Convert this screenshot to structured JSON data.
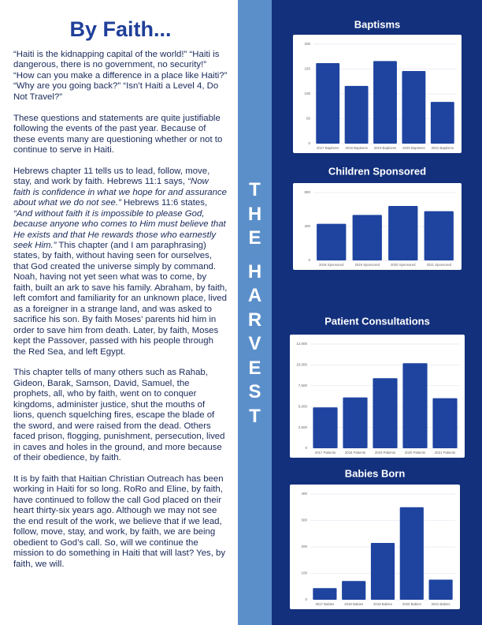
{
  "header": {
    "title": "By Faith..."
  },
  "paragraphs": [
    [
      "“Haiti is the kidnapping capital of the world!” “Haiti is dangerous, there is no government, no security!” “How can you make a difference in a place like Haiti?” “Why are you going back?” “Isn’t Haiti a Level 4, Do Not Travel?”"
    ],
    [
      "These questions and statements are quite justifiable following the events of the past year. Because of these events many are questioning whether or not to continue to serve in Haiti."
    ],
    [
      "Hebrews chapter 11 tells us to lead, follow, move, stay, and work by faith. Hebrews 11:1 says, ",
      {
        "text": "“Now faith is confidence in what we hope for and assurance about what we do not see.”",
        "em": true
      },
      " Hebrews 11:6 states, ",
      {
        "text": "“And without faith it is impossible to please God, because anyone who comes to Him must believe that He exists and that He rewards those who earnestly seek Him.”",
        "em": true
      },
      " This chapter (and I am paraphrasing) states, by faith, without having seen for ourselves, that God created the universe simply by command. Noah, having not yet seen what was to come, by faith, built an ark to save his family. Abraham, by faith, left comfort and familiarity for an unknown place, lived as a foreigner in a strange land, and was asked to sacrifice his son. By faith Moses’ parents hid him in order to save him from death. Later, by faith, Moses kept the Passover, passed with his people through the Red Sea, and left Egypt."
    ],
    [
      "This chapter tells of many others such as Rahab, Gideon, Barak, Samson, David, Samuel, the prophets, all, who by faith, went on to conquer kingdoms, administer justice, shut the mouths of lions, quench squelching fires, escape the blade of the sword, and were raised from the dead. Others faced prison, flogging, punishment, persecution, lived in caves and holes in the ground, and more because of their obedience, by faith."
    ],
    [
      "It is by faith that Haitian Christian Outreach has been working in Haiti for so long. RoRo and Eline, by faith, have continued to follow the call God placed on their heart thirty-six years ago. Although we may not see the end result of the work, we believe that if we lead, follow, move, stay, and work, by faith, we are being obedient to God’s call. So, will we continue the mission to do something in Haiti that will last? Yes, by faith, we will."
    ]
  ],
  "banner": [
    "THE",
    "HARVEST"
  ],
  "chart_data": [
    {
      "type": "bar",
      "title": "Baptisms",
      "color": "#1e44a0",
      "grid": true,
      "categories": [
        "2017 Baptisms",
        "2018 Baptisms",
        "2019 Baptisms",
        "2020 Baptisms",
        "2021 Baptisms"
      ],
      "values": [
        162,
        116,
        166,
        146,
        84
      ],
      "ylim": [
        0,
        200
      ],
      "yticks": [
        0,
        50,
        100,
        150,
        200
      ]
    },
    {
      "type": "bar",
      "title": "Children Sponsored",
      "color": "#1e44a0",
      "grid": true,
      "categories": [
        "2018 Sponsored",
        "2019 Sponsored",
        "2020 Sponsored",
        "2021 Sponsored"
      ],
      "values": [
        431,
        536,
        642,
        580
      ],
      "ylim": [
        0,
        800
      ],
      "yticks": [
        0,
        400,
        800
      ]
    },
    {
      "type": "bar",
      "title": "Patient Consultations",
      "color": "#1e44a0",
      "grid": true,
      "categories": [
        "2017 Patients",
        "2018 Patients",
        "2019 Patients",
        "2020 Patients",
        "2021 Patients"
      ],
      "values": [
        4900,
        6100,
        8400,
        10200,
        6000
      ],
      "ylim": [
        0,
        12500
      ],
      "yticks": [
        0,
        {
          "value": 2500,
          "label": "2,500"
        },
        {
          "value": 5000,
          "label": "5,000"
        },
        {
          "value": 7500,
          "label": "7,500"
        },
        {
          "value": 10000,
          "label": "10,000"
        },
        {
          "value": 12500,
          "label": "12,500"
        }
      ]
    },
    {
      "type": "bar",
      "title": "Babies Born",
      "color": "#1e44a0",
      "grid": true,
      "categories": [
        "2017 Babies",
        "2018 Babies",
        "2019 Babies",
        "2020 Babies",
        "2021 Babies"
      ],
      "values": [
        44,
        71,
        215,
        350,
        76
      ],
      "ylim": [
        0,
        400
      ],
      "yticks": [
        0,
        100,
        200,
        300,
        400
      ]
    }
  ]
}
